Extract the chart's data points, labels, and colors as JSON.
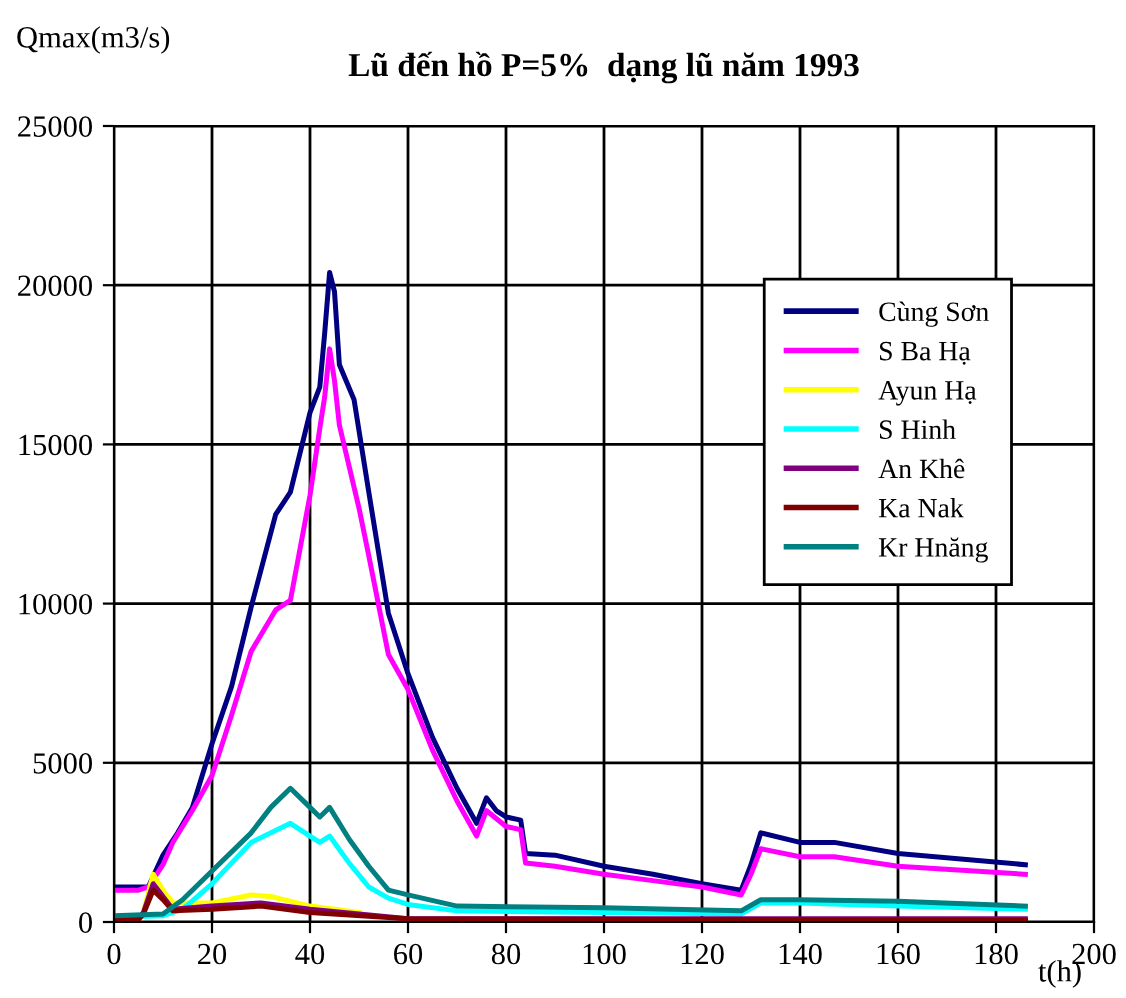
{
  "chart_data": {
    "type": "line",
    "title": "Lũ đến hồ P=5%  dạng lũ năm 1993",
    "xlabel": "t(h)",
    "ylabel": "Qmax(m3/s)",
    "xlim": [
      0,
      200
    ],
    "xticks": [
      0,
      20,
      40,
      60,
      80,
      100,
      120,
      140,
      160,
      180,
      200
    ],
    "ylim": [
      0,
      25000
    ],
    "yticks": [
      0,
      5000,
      10000,
      15000,
      20000,
      25000
    ],
    "grid": true,
    "legend": "top right",
    "marker": "none",
    "line_style": "solid",
    "series": [
      {
        "name": "Cùng Sơn",
        "color": "#000080",
        "x": [
          0,
          5,
          7,
          10,
          13,
          16,
          20,
          24,
          28,
          33,
          36,
          40,
          42,
          43,
          44,
          45,
          46,
          49,
          52,
          56,
          60,
          62,
          65,
          70,
          74,
          76,
          78,
          80,
          83,
          84,
          90,
          100,
          110,
          120,
          128,
          130,
          132,
          140,
          147,
          160,
          186
        ],
        "values": [
          1100,
          1100,
          1100,
          2100,
          2800,
          3600,
          5600,
          7400,
          9900,
          12800,
          13500,
          16000,
          16800,
          18500,
          20400,
          19800,
          17500,
          16400,
          13500,
          9700,
          7800,
          7000,
          5800,
          4200,
          3100,
          3900,
          3500,
          3300,
          3200,
          2150,
          2100,
          1750,
          1500,
          1200,
          1000,
          1800,
          2800,
          2500,
          2500,
          2150,
          1800
        ]
      },
      {
        "name": "S Ba Hạ",
        "color": "#ff00ff",
        "x": [
          0,
          5,
          7,
          10,
          12,
          16,
          20,
          24,
          28,
          33,
          36,
          40,
          42,
          43,
          44,
          45,
          46,
          50,
          52,
          56,
          60,
          65,
          70,
          74,
          76,
          80,
          83,
          84,
          90,
          100,
          110,
          120,
          128,
          130,
          132,
          140,
          147,
          160,
          186
        ],
        "values": [
          1000,
          1000,
          1100,
          1800,
          2500,
          3500,
          4600,
          6500,
          8500,
          9800,
          10100,
          13400,
          15500,
          16500,
          18000,
          17000,
          15600,
          13000,
          11500,
          8400,
          7300,
          5400,
          3800,
          2700,
          3500,
          3000,
          2900,
          1850,
          1750,
          1500,
          1300,
          1100,
          850,
          1500,
          2300,
          2050,
          2050,
          1750,
          1500
        ]
      },
      {
        "name": "Ayun Hạ",
        "color": "#ffff00",
        "x": [
          6,
          8,
          10,
          12,
          20,
          28,
          32,
          40,
          50
        ],
        "values": [
          300,
          1500,
          1000,
          600,
          600,
          850,
          800,
          500,
          300
        ]
      },
      {
        "name": "S Hinh",
        "color": "#00ffff",
        "x": [
          0,
          10,
          14,
          20,
          28,
          36,
          40,
          42,
          44,
          48,
          52,
          56,
          60,
          70,
          100,
          128,
          132,
          140,
          160,
          186
        ],
        "values": [
          150,
          200,
          400,
          1200,
          2500,
          3100,
          2700,
          2500,
          2700,
          1850,
          1100,
          750,
          550,
          350,
          300,
          250,
          600,
          600,
          500,
          400
        ]
      },
      {
        "name": "An Khê",
        "color": "#800080",
        "x": [
          0,
          5,
          6,
          8,
          10,
          12,
          20,
          30,
          40,
          60,
          186
        ],
        "values": [
          50,
          100,
          300,
          1200,
          800,
          400,
          500,
          600,
          400,
          100,
          100
        ]
      },
      {
        "name": "Ka Nak",
        "color": "#800000",
        "x": [
          0,
          5,
          6,
          8,
          10,
          12,
          20,
          30,
          40,
          60,
          186
        ],
        "values": [
          50,
          80,
          250,
          1000,
          700,
          350,
          400,
          500,
          300,
          100,
          50
        ]
      },
      {
        "name": "Kr Hnăng",
        "color": "#008080",
        "x": [
          0,
          10,
          14,
          20,
          28,
          32,
          36,
          40,
          42,
          44,
          48,
          52,
          56,
          60,
          70,
          100,
          128,
          132,
          140,
          160,
          186
        ],
        "values": [
          200,
          250,
          700,
          1600,
          2800,
          3600,
          4200,
          3600,
          3300,
          3600,
          2600,
          1750,
          1000,
          850,
          500,
          450,
          350,
          700,
          700,
          650,
          500
        ]
      }
    ]
  }
}
